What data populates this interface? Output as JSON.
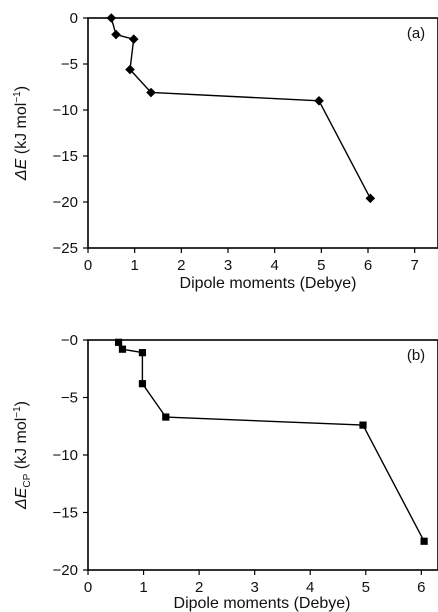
{
  "chart_data": [
    {
      "type": "line",
      "panel_label": "(a)",
      "xlabel": "Dipole moments (Debye)",
      "ylabel_main": "ΔE",
      "ylabel_sub": "",
      "ylabel_unit": " (kJ mol",
      "ylabel_sup": "−1",
      "ylabel_close": ")",
      "xlim": [
        0,
        7.5
      ],
      "ylim": [
        -25,
        0
      ],
      "xticks": [
        0,
        1,
        2,
        3,
        4,
        5,
        6,
        7
      ],
      "yticks": [
        0,
        -5,
        -10,
        -15,
        -20,
        -25
      ],
      "ytick_labels": [
        "0",
        "−5",
        "−10",
        "−15",
        "−20",
        "−25"
      ],
      "marker": "diamond",
      "grid": false,
      "series": [
        {
          "x": [
            0.5,
            0.6,
            0.98,
            0.9,
            1.35,
            4.95,
            6.05
          ],
          "y": [
            0.0,
            -1.8,
            -2.3,
            -5.6,
            -8.1,
            -9.0,
            -19.6
          ]
        }
      ]
    },
    {
      "type": "line",
      "panel_label": "(b)",
      "xlabel": "Dipole moments (Debye)",
      "ylabel_main": "ΔE",
      "ylabel_sub": "CP",
      "ylabel_unit": " (kJ mol",
      "ylabel_sup": "−1",
      "ylabel_close": ")",
      "xlim": [
        0,
        6.3
      ],
      "ylim": [
        -20,
        0
      ],
      "xticks": [
        0,
        1,
        2,
        3,
        4,
        5,
        6
      ],
      "yticks": [
        0,
        -5,
        -10,
        -15,
        -20
      ],
      "ytick_labels": [
        "−0",
        "−5",
        "−10",
        "−15",
        "−20"
      ],
      "marker": "square",
      "grid": false,
      "series": [
        {
          "x": [
            0.55,
            0.62,
            0.98,
            0.98,
            1.4,
            4.95,
            6.05
          ],
          "y": [
            -0.2,
            -0.8,
            -1.1,
            -3.8,
            -6.7,
            -7.4,
            -17.5
          ]
        }
      ]
    }
  ]
}
